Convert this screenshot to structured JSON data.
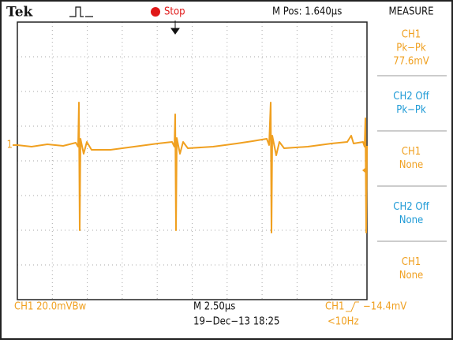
{
  "header": {
    "brand": "Tek",
    "status": "Stop",
    "position": "M Pos: 1.640µs",
    "menu_title": "MEASURE"
  },
  "channel_marker": "1",
  "measurements": [
    {
      "lines": [
        "CH1",
        "Pk−Pk",
        "77.6mV"
      ],
      "channel": "ch1"
    },
    {
      "lines": [
        "CH2 Off",
        "Pk−Pk"
      ],
      "channel": "ch2"
    },
    {
      "lines": [
        "CH1",
        "None"
      ],
      "channel": "ch1"
    },
    {
      "lines": [
        "CH2 Off",
        "None"
      ],
      "channel": "ch2"
    },
    {
      "lines": [
        "CH1",
        "None"
      ],
      "channel": "ch1"
    }
  ],
  "footer": {
    "ch1_scale": "CH1  20.0mVBw",
    "timebase": "M 2.50µs",
    "datetime": "19−Dec−13 18:25",
    "trigger_source": "CH1",
    "trigger_level": "−14.4mV",
    "frequency": "<10Hz"
  }
}
